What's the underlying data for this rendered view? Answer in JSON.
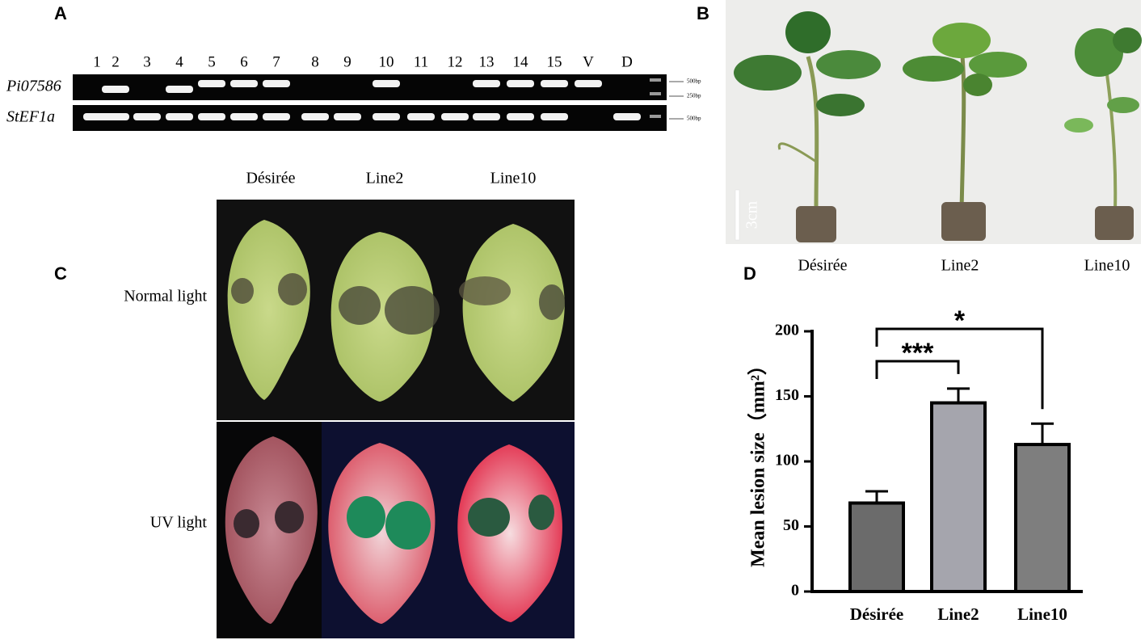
{
  "panel_a": {
    "label": "A",
    "lanes": [
      "1",
      "2",
      "3",
      "4",
      "5",
      "6",
      "7",
      "8",
      "9",
      "10",
      "11",
      "12",
      "13",
      "14",
      "15",
      "V",
      "D"
    ],
    "gels": [
      {
        "gene": "Pi07586",
        "bands": [
          false,
          true,
          false,
          true,
          true,
          true,
          true,
          false,
          false,
          true,
          false,
          false,
          true,
          true,
          true,
          true,
          false
        ]
      },
      {
        "gene": "StEF1a",
        "bands": [
          true,
          true,
          true,
          true,
          true,
          true,
          true,
          true,
          true,
          true,
          true,
          true,
          true,
          true,
          true,
          false,
          true
        ]
      }
    ],
    "markers": [
      "500bp",
      "250bp",
      "500bp"
    ]
  },
  "panel_b": {
    "label": "B",
    "scale": "3cm",
    "samples": [
      "Désirée",
      "Line2",
      "Line10"
    ]
  },
  "panel_c": {
    "label": "C",
    "samples": [
      "Désirée",
      "Line2",
      "Line10"
    ],
    "rows": [
      "Normal light",
      "UV light"
    ]
  },
  "panel_d": {
    "label": "D"
  },
  "chart_data": {
    "type": "bar",
    "ylabel": "Mean lesion size（mm²）",
    "categories": [
      "Désirée",
      "Line2",
      "Line10"
    ],
    "values": [
      68,
      145,
      113
    ],
    "errors": [
      9,
      11,
      16
    ],
    "colors": [
      "#6b6b6b",
      "#a5a5ad",
      "#7e7e7e"
    ],
    "ylim": [
      0,
      200
    ],
    "yticks": [
      0,
      50,
      100,
      150,
      200
    ],
    "annotations": [
      {
        "text": "***",
        "between": [
          "Désirée",
          "Line2"
        ]
      },
      {
        "text": "*",
        "between": [
          "Désirée",
          "Line10"
        ]
      }
    ]
  }
}
